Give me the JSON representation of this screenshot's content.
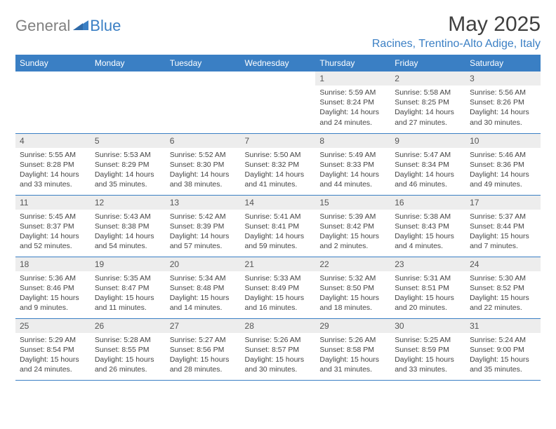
{
  "brand": {
    "text_gray": "General",
    "text_blue": "Blue"
  },
  "title": "May 2025",
  "location": "Racines, Trentino-Alto Adige, Italy",
  "colors": {
    "header_bg": "#3a7fc4",
    "header_text": "#ffffff",
    "daynum_bg": "#ededed",
    "row_border": "#3a7fc4",
    "title_color": "#404040",
    "location_color": "#3a7fc4",
    "logo_gray": "#808080",
    "body_text": "#444444"
  },
  "day_headers": [
    "Sunday",
    "Monday",
    "Tuesday",
    "Wednesday",
    "Thursday",
    "Friday",
    "Saturday"
  ],
  "weeks": [
    [
      null,
      null,
      null,
      null,
      {
        "n": "1",
        "sunrise": "5:59 AM",
        "sunset": "8:24 PM",
        "daylight": "14 hours and 24 minutes."
      },
      {
        "n": "2",
        "sunrise": "5:58 AM",
        "sunset": "8:25 PM",
        "daylight": "14 hours and 27 minutes."
      },
      {
        "n": "3",
        "sunrise": "5:56 AM",
        "sunset": "8:26 PM",
        "daylight": "14 hours and 30 minutes."
      }
    ],
    [
      {
        "n": "4",
        "sunrise": "5:55 AM",
        "sunset": "8:28 PM",
        "daylight": "14 hours and 33 minutes."
      },
      {
        "n": "5",
        "sunrise": "5:53 AM",
        "sunset": "8:29 PM",
        "daylight": "14 hours and 35 minutes."
      },
      {
        "n": "6",
        "sunrise": "5:52 AM",
        "sunset": "8:30 PM",
        "daylight": "14 hours and 38 minutes."
      },
      {
        "n": "7",
        "sunrise": "5:50 AM",
        "sunset": "8:32 PM",
        "daylight": "14 hours and 41 minutes."
      },
      {
        "n": "8",
        "sunrise": "5:49 AM",
        "sunset": "8:33 PM",
        "daylight": "14 hours and 44 minutes."
      },
      {
        "n": "9",
        "sunrise": "5:47 AM",
        "sunset": "8:34 PM",
        "daylight": "14 hours and 46 minutes."
      },
      {
        "n": "10",
        "sunrise": "5:46 AM",
        "sunset": "8:36 PM",
        "daylight": "14 hours and 49 minutes."
      }
    ],
    [
      {
        "n": "11",
        "sunrise": "5:45 AM",
        "sunset": "8:37 PM",
        "daylight": "14 hours and 52 minutes."
      },
      {
        "n": "12",
        "sunrise": "5:43 AM",
        "sunset": "8:38 PM",
        "daylight": "14 hours and 54 minutes."
      },
      {
        "n": "13",
        "sunrise": "5:42 AM",
        "sunset": "8:39 PM",
        "daylight": "14 hours and 57 minutes."
      },
      {
        "n": "14",
        "sunrise": "5:41 AM",
        "sunset": "8:41 PM",
        "daylight": "14 hours and 59 minutes."
      },
      {
        "n": "15",
        "sunrise": "5:39 AM",
        "sunset": "8:42 PM",
        "daylight": "15 hours and 2 minutes."
      },
      {
        "n": "16",
        "sunrise": "5:38 AM",
        "sunset": "8:43 PM",
        "daylight": "15 hours and 4 minutes."
      },
      {
        "n": "17",
        "sunrise": "5:37 AM",
        "sunset": "8:44 PM",
        "daylight": "15 hours and 7 minutes."
      }
    ],
    [
      {
        "n": "18",
        "sunrise": "5:36 AM",
        "sunset": "8:46 PM",
        "daylight": "15 hours and 9 minutes."
      },
      {
        "n": "19",
        "sunrise": "5:35 AM",
        "sunset": "8:47 PM",
        "daylight": "15 hours and 11 minutes."
      },
      {
        "n": "20",
        "sunrise": "5:34 AM",
        "sunset": "8:48 PM",
        "daylight": "15 hours and 14 minutes."
      },
      {
        "n": "21",
        "sunrise": "5:33 AM",
        "sunset": "8:49 PM",
        "daylight": "15 hours and 16 minutes."
      },
      {
        "n": "22",
        "sunrise": "5:32 AM",
        "sunset": "8:50 PM",
        "daylight": "15 hours and 18 minutes."
      },
      {
        "n": "23",
        "sunrise": "5:31 AM",
        "sunset": "8:51 PM",
        "daylight": "15 hours and 20 minutes."
      },
      {
        "n": "24",
        "sunrise": "5:30 AM",
        "sunset": "8:52 PM",
        "daylight": "15 hours and 22 minutes."
      }
    ],
    [
      {
        "n": "25",
        "sunrise": "5:29 AM",
        "sunset": "8:54 PM",
        "daylight": "15 hours and 24 minutes."
      },
      {
        "n": "26",
        "sunrise": "5:28 AM",
        "sunset": "8:55 PM",
        "daylight": "15 hours and 26 minutes."
      },
      {
        "n": "27",
        "sunrise": "5:27 AM",
        "sunset": "8:56 PM",
        "daylight": "15 hours and 28 minutes."
      },
      {
        "n": "28",
        "sunrise": "5:26 AM",
        "sunset": "8:57 PM",
        "daylight": "15 hours and 30 minutes."
      },
      {
        "n": "29",
        "sunrise": "5:26 AM",
        "sunset": "8:58 PM",
        "daylight": "15 hours and 31 minutes."
      },
      {
        "n": "30",
        "sunrise": "5:25 AM",
        "sunset": "8:59 PM",
        "daylight": "15 hours and 33 minutes."
      },
      {
        "n": "31",
        "sunrise": "5:24 AM",
        "sunset": "9:00 PM",
        "daylight": "15 hours and 35 minutes."
      }
    ]
  ],
  "labels": {
    "sunrise": "Sunrise:",
    "sunset": "Sunset:",
    "daylight": "Daylight:"
  }
}
